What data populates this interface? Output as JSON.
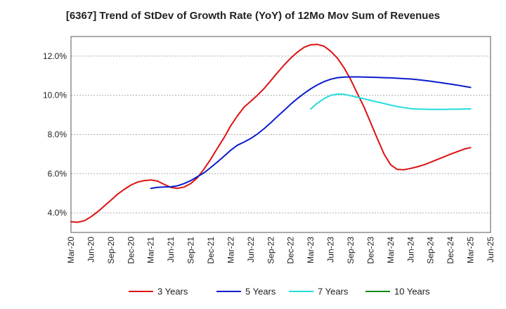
{
  "chart_data": {
    "type": "line",
    "title": "[6367]  Trend of StDev of Growth Rate (YoY) of 12Mo Mov Sum of Revenues",
    "xlabel": "",
    "ylabel": "",
    "ylim": [
      3.0,
      13.0
    ],
    "yticks": [
      4.0,
      6.0,
      8.0,
      10.0,
      12.0
    ],
    "ytick_labels": [
      "4.0%",
      "6.0%",
      "8.0%",
      "10.0%",
      "12.0%"
    ],
    "x_range": [
      0,
      21
    ],
    "x_ticks": [
      "Mar-20",
      "Jun-20",
      "Sep-20",
      "Dec-20",
      "Mar-21",
      "Jun-21",
      "Sep-21",
      "Dec-21",
      "Mar-22",
      "Jun-22",
      "Sep-22",
      "Dec-22",
      "Mar-23",
      "Jun-23",
      "Sep-23",
      "Dec-23",
      "Mar-24",
      "Jun-24",
      "Sep-24",
      "Dec-24",
      "Mar-25",
      "Jun-25"
    ],
    "grid": true,
    "legend_position": "bottom",
    "series": [
      {
        "name": "3 Years",
        "color": "#dd1111",
        "x": [
          0,
          0.33,
          0.67,
          1,
          1.33,
          1.67,
          2,
          2.33,
          2.67,
          3,
          3.33,
          3.67,
          4,
          4.33,
          4.67,
          5,
          5.33,
          5.67,
          6,
          6.33,
          6.67,
          7,
          7.33,
          7.67,
          8,
          8.33,
          8.67,
          9,
          9.33,
          9.67,
          10,
          10.33,
          10.67,
          11,
          11.33,
          11.67,
          12,
          12.33,
          12.67,
          13,
          13.33,
          13.67,
          14,
          14.33,
          14.67,
          15,
          15.33,
          15.67,
          16,
          16.33,
          16.67,
          17,
          17.33,
          17.67,
          18,
          18.33,
          18.67,
          19,
          19.33,
          19.67,
          20
        ],
        "values": [
          3.55,
          3.52,
          3.6,
          3.8,
          4.05,
          4.35,
          4.65,
          4.95,
          5.2,
          5.42,
          5.57,
          5.65,
          5.68,
          5.62,
          5.45,
          5.3,
          5.25,
          5.32,
          5.5,
          5.8,
          6.25,
          6.75,
          7.3,
          7.85,
          8.45,
          8.95,
          9.4,
          9.7,
          10.0,
          10.35,
          10.75,
          11.15,
          11.55,
          11.9,
          12.2,
          12.45,
          12.58,
          12.6,
          12.5,
          12.25,
          11.9,
          11.4,
          10.8,
          10.1,
          9.4,
          8.6,
          7.8,
          7.0,
          6.45,
          6.22,
          6.2,
          6.27,
          6.35,
          6.45,
          6.58,
          6.72,
          6.86,
          7.0,
          7.12,
          7.25,
          7.33
        ]
      },
      {
        "name": "5 Years",
        "color": "#0a1ccc",
        "x": [
          4,
          4.33,
          4.67,
          5,
          5.33,
          5.67,
          6,
          6.33,
          6.67,
          7,
          7.33,
          7.67,
          8,
          8.33,
          8.67,
          9,
          9.33,
          9.67,
          10,
          10.33,
          10.67,
          11,
          11.33,
          11.67,
          12,
          12.33,
          12.67,
          13,
          13.33,
          13.67,
          14,
          14.33,
          14.67,
          15,
          15.33,
          15.67,
          16,
          16.33,
          16.67,
          17,
          17.33,
          17.67,
          18,
          18.33,
          18.67,
          19,
          19.33,
          19.67,
          20
        ],
        "values": [
          5.25,
          5.3,
          5.32,
          5.33,
          5.38,
          5.5,
          5.65,
          5.85,
          6.05,
          6.32,
          6.6,
          6.9,
          7.2,
          7.45,
          7.62,
          7.8,
          8.02,
          8.3,
          8.6,
          8.92,
          9.23,
          9.55,
          9.83,
          10.1,
          10.33,
          10.53,
          10.7,
          10.82,
          10.9,
          10.93,
          10.94,
          10.94,
          10.93,
          10.92,
          10.91,
          10.9,
          10.89,
          10.87,
          10.85,
          10.83,
          10.8,
          10.76,
          10.72,
          10.67,
          10.62,
          10.57,
          10.52,
          10.46,
          10.4
        ]
      },
      {
        "name": "7 Years",
        "color": "#22dddd",
        "x": [
          12,
          12.33,
          12.67,
          13,
          13.33,
          13.67,
          14,
          14.33,
          14.67,
          15,
          15.33,
          15.67,
          16,
          16.33,
          16.67,
          17,
          17.33,
          17.67,
          18,
          18.33,
          18.67,
          19,
          19.33,
          19.67,
          20
        ],
        "values": [
          9.3,
          9.6,
          9.83,
          10.0,
          10.06,
          10.05,
          9.98,
          9.9,
          9.82,
          9.74,
          9.66,
          9.58,
          9.5,
          9.43,
          9.37,
          9.32,
          9.3,
          9.29,
          9.28,
          9.28,
          9.28,
          9.29,
          9.29,
          9.3,
          9.31
        ]
      },
      {
        "name": "10 Years",
        "color": "#118811",
        "x": [],
        "values": []
      }
    ]
  }
}
